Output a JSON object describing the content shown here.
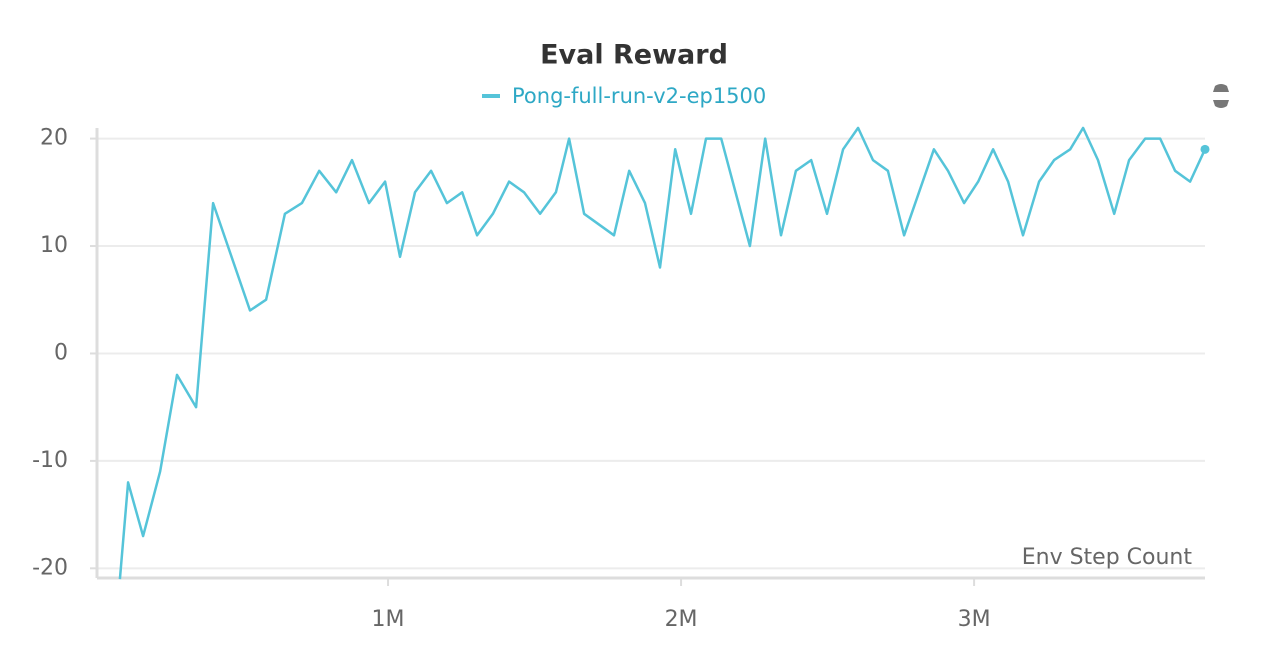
{
  "chart_data": {
    "type": "line",
    "title": "Eval Reward",
    "x_label": "Env Step Count",
    "x": [
      85000,
      113000,
      164000,
      222000,
      280000,
      345000,
      403000,
      529000,
      584000,
      648000,
      706000,
      765000,
      823000,
      877000,
      935000,
      990000,
      1041000,
      1092000,
      1147000,
      1201000,
      1253000,
      1304000,
      1358000,
      1413000,
      1464000,
      1519000,
      1573000,
      1618000,
      1669000,
      1771000,
      1823000,
      1877000,
      1928000,
      1980000,
      2034000,
      2085000,
      2137000,
      2235000,
      2287000,
      2341000,
      2392000,
      2444000,
      2498000,
      2553000,
      2604000,
      2655000,
      2706000,
      2761000,
      2863000,
      2911000,
      2966000,
      3014000,
      3065000,
      3116000,
      3167000,
      3222000,
      3273000,
      3328000,
      3372000,
      3423000,
      3478000,
      3529000,
      3584000,
      3635000,
      3686000,
      3737000,
      3788000
    ],
    "series": [
      {
        "name": "Pong-full-run-v2-ep1500",
        "color": "#55c4d9",
        "values": [
          -21,
          -12,
          -17,
          -11,
          -2,
          -5,
          14,
          4,
          5,
          13,
          14,
          17,
          15,
          18,
          14,
          16,
          9,
          15,
          17,
          14,
          15,
          11,
          13,
          16,
          15,
          13,
          15,
          20,
          13,
          11,
          17,
          14,
          8,
          19,
          13,
          20,
          20,
          10,
          20,
          11,
          17,
          18,
          13,
          19,
          21,
          18,
          17,
          11,
          19,
          17,
          14,
          16,
          19,
          16,
          11,
          16,
          18,
          19,
          21,
          18,
          13,
          18,
          20,
          20,
          17,
          16,
          19
        ]
      }
    ],
    "xlim": [
      0,
      3788000
    ],
    "xticks": [
      {
        "value": 1000000,
        "label": "1M"
      },
      {
        "value": 2000000,
        "label": "2M"
      },
      {
        "value": 3000000,
        "label": "3M"
      }
    ],
    "ylim": [
      -20.9,
      20.8
    ],
    "yticks": [
      20,
      10,
      0,
      -10,
      -20
    ],
    "grid": true
  }
}
